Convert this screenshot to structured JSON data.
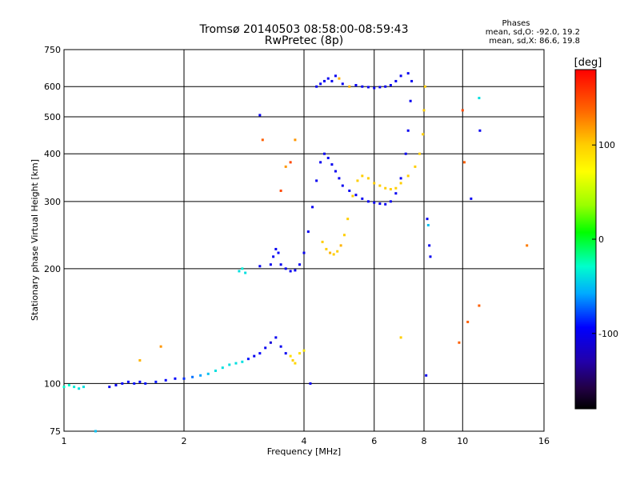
{
  "chart_data": {
    "type": "scatter",
    "title": "Tromsø 20140503 08:58:00-08:59:43",
    "subtitle": "RwPretec (8p)",
    "xlabel": "Frequency [MHz]",
    "ylabel": "Stationary phase Virtual Height [km]",
    "x_scale": "log",
    "y_scale": "log",
    "xlim": [
      1,
      16
    ],
    "ylim": [
      75,
      750
    ],
    "x_ticks": [
      1,
      2,
      4,
      6,
      8,
      10,
      16
    ],
    "y_ticks": [
      75,
      100,
      200,
      300,
      400,
      500,
      600,
      750
    ],
    "grid": true,
    "legend": {
      "title": "Phases",
      "lines": [
        "mean, sd,O: -92.0, 19.2",
        "mean, sd,X:  86.6, 19.8"
      ],
      "position": "top-right"
    },
    "colorbar": {
      "label": "[deg]",
      "range": [
        -180,
        180
      ],
      "ticks": [
        100,
        0,
        -100
      ],
      "position": "right"
    },
    "series": [
      {
        "points": [
          [
            1.0,
            98,
            -30
          ],
          [
            1.03,
            99,
            -30
          ],
          [
            1.06,
            98,
            -35
          ],
          [
            1.09,
            97,
            -40
          ],
          [
            1.12,
            98,
            -40
          ],
          [
            1.3,
            98,
            -100
          ],
          [
            1.35,
            99,
            -100
          ],
          [
            1.4,
            100,
            -95
          ],
          [
            1.45,
            101,
            -95
          ],
          [
            1.5,
            100,
            -90
          ],
          [
            1.55,
            101,
            -95
          ],
          [
            1.6,
            100,
            -90
          ],
          [
            1.7,
            101,
            -90
          ],
          [
            1.8,
            102,
            -95
          ],
          [
            1.9,
            103,
            -95
          ],
          [
            2.0,
            103,
            -85
          ],
          [
            2.1,
            104,
            -70
          ],
          [
            2.2,
            105,
            -60
          ],
          [
            2.3,
            106,
            -50
          ],
          [
            2.4,
            108,
            -40
          ],
          [
            2.5,
            110,
            -40
          ],
          [
            2.6,
            112,
            -40
          ],
          [
            2.7,
            113,
            -40
          ],
          [
            2.8,
            114,
            -40
          ],
          [
            2.9,
            116,
            -90
          ],
          [
            3.0,
            118,
            -100
          ],
          [
            3.1,
            120,
            -95
          ],
          [
            3.2,
            124,
            -100
          ],
          [
            3.3,
            128,
            -110
          ],
          [
            3.4,
            132,
            -100
          ],
          [
            3.5,
            125,
            -100
          ],
          [
            3.6,
            120,
            -100
          ],
          [
            3.7,
            118,
            90
          ],
          [
            3.75,
            115,
            100
          ],
          [
            3.8,
            113,
            95
          ],
          [
            3.9,
            120,
            90
          ],
          [
            4.0,
            122,
            85
          ],
          [
            2.75,
            197,
            -40
          ],
          [
            2.8,
            200,
            -35
          ],
          [
            2.85,
            195,
            -40
          ],
          [
            3.1,
            203,
            -100
          ],
          [
            3.3,
            205,
            -100
          ],
          [
            3.35,
            215,
            -100
          ],
          [
            3.4,
            225,
            -100
          ],
          [
            3.45,
            220,
            -95
          ],
          [
            3.5,
            205,
            -100
          ],
          [
            3.6,
            200,
            -100
          ],
          [
            3.7,
            197,
            -100
          ],
          [
            3.8,
            198,
            -100
          ],
          [
            3.9,
            205,
            -100
          ],
          [
            4.0,
            220,
            -100
          ],
          [
            4.1,
            250,
            -100
          ],
          [
            4.2,
            290,
            -100
          ],
          [
            4.3,
            340,
            -100
          ],
          [
            4.4,
            380,
            -100
          ],
          [
            4.5,
            400,
            -100
          ],
          [
            4.6,
            390,
            -100
          ],
          [
            4.7,
            375,
            -100
          ],
          [
            4.8,
            360,
            -100
          ],
          [
            4.9,
            345,
            -100
          ],
          [
            5.0,
            330,
            -100
          ],
          [
            5.2,
            320,
            -100
          ],
          [
            5.4,
            312,
            -100
          ],
          [
            5.6,
            305,
            -100
          ],
          [
            5.8,
            300,
            -100
          ],
          [
            6.0,
            298,
            -100
          ],
          [
            6.2,
            296,
            -100
          ],
          [
            6.4,
            295,
            -100
          ],
          [
            6.6,
            300,
            -100
          ],
          [
            6.8,
            315,
            -100
          ],
          [
            7.0,
            345,
            -100
          ],
          [
            7.2,
            400,
            -100
          ],
          [
            7.3,
            460,
            -100
          ],
          [
            7.4,
            550,
            -100
          ],
          [
            7.45,
            620,
            -100
          ],
          [
            4.45,
            235,
            100
          ],
          [
            4.55,
            225,
            100
          ],
          [
            4.65,
            220,
            110
          ],
          [
            4.75,
            218,
            100
          ],
          [
            4.85,
            222,
            100
          ],
          [
            4.95,
            230,
            110
          ],
          [
            5.05,
            245,
            100
          ],
          [
            5.15,
            270,
            100
          ],
          [
            5.3,
            310,
            100
          ],
          [
            5.45,
            340,
            100
          ],
          [
            5.6,
            350,
            100
          ],
          [
            5.8,
            345,
            100
          ],
          [
            6.0,
            335,
            100
          ],
          [
            6.2,
            330,
            100
          ],
          [
            6.4,
            325,
            100
          ],
          [
            6.6,
            323,
            100
          ],
          [
            6.8,
            325,
            100
          ],
          [
            7.0,
            335,
            100
          ],
          [
            7.3,
            350,
            100
          ],
          [
            7.6,
            370,
            100
          ],
          [
            7.8,
            400,
            100
          ],
          [
            7.95,
            450,
            100
          ],
          [
            8.0,
            520,
            100
          ],
          [
            8.05,
            600,
            100
          ],
          [
            4.3,
            600,
            -100
          ],
          [
            4.4,
            610,
            -100
          ],
          [
            4.5,
            620,
            -100
          ],
          [
            4.6,
            630,
            -100
          ],
          [
            4.7,
            620,
            -100
          ],
          [
            4.8,
            640,
            -100
          ],
          [
            4.9,
            630,
            110
          ],
          [
            5.0,
            610,
            -100
          ],
          [
            5.2,
            600,
            110
          ],
          [
            5.4,
            605,
            -100
          ],
          [
            5.6,
            600,
            -100
          ],
          [
            5.8,
            598,
            -100
          ],
          [
            6.0,
            595,
            -100
          ],
          [
            6.2,
            598,
            -100
          ],
          [
            6.4,
            600,
            -100
          ],
          [
            6.6,
            605,
            -100
          ],
          [
            6.8,
            620,
            -100
          ],
          [
            7.0,
            640,
            -100
          ],
          [
            7.3,
            650,
            -100
          ],
          [
            3.1,
            505,
            -100
          ],
          [
            3.15,
            435,
            140
          ],
          [
            3.8,
            435,
            120
          ],
          [
            3.7,
            380,
            150
          ],
          [
            3.6,
            370,
            120
          ],
          [
            3.5,
            320,
            150
          ],
          [
            4.15,
            100,
            -100
          ],
          [
            8.1,
            105,
            -100
          ],
          [
            8.15,
            270,
            -100
          ],
          [
            8.2,
            260,
            -50
          ],
          [
            8.25,
            230,
            -100
          ],
          [
            8.3,
            215,
            -100
          ],
          [
            10.0,
            520,
            150
          ],
          [
            10.1,
            380,
            140
          ],
          [
            10.5,
            305,
            -100
          ],
          [
            11.0,
            560,
            -40
          ],
          [
            11.05,
            460,
            -100
          ],
          [
            11.0,
            160,
            140
          ],
          [
            10.3,
            145,
            140
          ],
          [
            9.8,
            128,
            140
          ],
          [
            14.5,
            230,
            130
          ],
          [
            7.0,
            132,
            100
          ],
          [
            1.2,
            75,
            -50
          ],
          [
            1.75,
            125,
            120
          ],
          [
            1.55,
            115,
            110
          ]
        ]
      }
    ]
  }
}
